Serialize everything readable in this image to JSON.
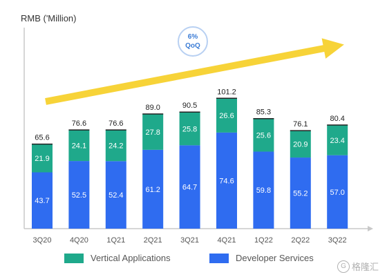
{
  "chart_data": {
    "type": "bar",
    "stacked": true,
    "ylabel": "RMB ('Million)",
    "categories": [
      "3Q20",
      "4Q20",
      "1Q21",
      "2Q21",
      "3Q21",
      "4Q21",
      "1Q22",
      "2Q22",
      "3Q22"
    ],
    "series": [
      {
        "name": "Developer Services",
        "color": "#2f6cf0",
        "values": [
          43.7,
          52.5,
          52.4,
          61.2,
          64.7,
          74.6,
          59.8,
          55.2,
          57.0
        ]
      },
      {
        "name": "Vertical Applications",
        "color": "#1fa98b",
        "values": [
          21.9,
          24.1,
          24.2,
          27.8,
          25.8,
          26.6,
          25.6,
          20.9,
          23.4
        ]
      }
    ],
    "totals": [
      65.6,
      76.6,
      76.6,
      89.0,
      90.5,
      101.2,
      85.3,
      76.1,
      80.4
    ],
    "annotation": {
      "line1": "6%",
      "line2": "QoQ"
    },
    "legend_position": "bottom"
  },
  "watermark": {
    "icon": "G",
    "text": "格隆汇"
  },
  "colors": {
    "arrow": "#f7d338",
    "axis": "#c8c8c8",
    "badge_text": "#3a7bd5"
  }
}
